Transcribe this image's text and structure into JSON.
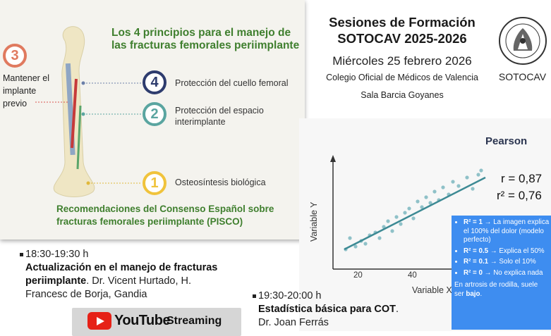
{
  "header": {
    "title_line1": "Sesiones de Formación",
    "title_line2": "SOTOCAV 2025-2026",
    "date": "Miércoles 25 febrero 2026",
    "venue": "Colegio Oficial de Médicos de Valencia",
    "room": "Sala Barcia Goyanes",
    "logo_text": "SOTOCAV"
  },
  "left_slide": {
    "title": "Los 4 principios para el manejo de las fracturas femorales periimplante",
    "principles": [
      {
        "number": "4",
        "label": "Protección del cuello femoral",
        "color": "#2e3c6e"
      },
      {
        "number": "2",
        "label": "Protección del espacio interimplante",
        "color": "#5aa5a0"
      },
      {
        "number": "1",
        "label": "Osteosíntesis biológica",
        "color": "#f0c33c"
      }
    ],
    "principle_3": {
      "number": "3",
      "label_lines": [
        "Mantener el",
        "implante",
        "previo"
      ],
      "color": "#e07a5f"
    },
    "footer": "Recomendaciones del Consenso Español sobre fracturas femorales periimplante (PISCO)"
  },
  "right_slide": {
    "title": "Pearson",
    "r": "r = 0,87",
    "r2": "r² = 0,76",
    "y_label": "Variable Y",
    "x_label": "Variable X",
    "x_ticks": [
      "20",
      "40"
    ],
    "bullets": [
      {
        "key": "R² = 1",
        "text": " → La imagen explica el 100% del dolor (modelo perfecto)"
      },
      {
        "key": "R² = 0.5",
        "text": " → Explica el 50%"
      },
      {
        "key": "R² = 0.1",
        "text": " → Solo el 10%"
      },
      {
        "key": "R² = 0",
        "text": " → No explica nada"
      }
    ],
    "note_prefix": "En artrosis de rodilla, suele ser ",
    "note_bold": "bajo",
    "note_suffix": "."
  },
  "sessions": [
    {
      "time": "18:30-19:30 h",
      "title": "Actualización en el manejo de fracturas periimplante",
      "speaker": ". Dr. Vicent Hurtado, H. Francesc de Borja, Gandia"
    },
    {
      "time": "19:30-20:00 h",
      "title": "Estadística básica para COT",
      "speaker_tail": ".",
      "speaker": "Dr. Joan Ferrás"
    }
  ],
  "youtube": {
    "brand": "YouTube",
    "label": "Streaming"
  },
  "colors": {
    "green_title": "#3f7f2e",
    "blue_box": "#3e8df0",
    "youtube_red": "#e62117"
  }
}
